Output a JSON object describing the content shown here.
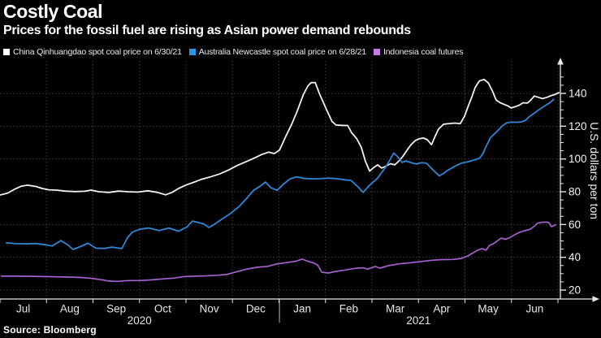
{
  "header": {
    "title": "Costly Coal",
    "subtitle": "Prices for the fossil fuel are rising as Asian power demand rebounds"
  },
  "legend": {
    "items": [
      {
        "label": "China Qinhuangdao spot coal price on 6/30/21",
        "swatch": "#ffffff"
      },
      {
        "label": "Australia Newcastle spot coal price on 6/28/21",
        "swatch": "#2496e8"
      },
      {
        "label": "Indonesia coal futures",
        "swatch": "#c678e8"
      }
    ]
  },
  "source": {
    "text": "Source: Bloomberg"
  },
  "chart_data": {
    "type": "line",
    "title": "Costly Coal",
    "background": "#000000",
    "grid": "dotted",
    "x": {
      "unit": "months since Jul 2020",
      "start": "Jul 2020",
      "end": "Jun 2021",
      "range": [
        0,
        12
      ],
      "tick_labels": [
        "Jul",
        "Aug",
        "Sep",
        "Oct",
        "Nov",
        "Dec",
        "Jan",
        "Feb",
        "Mar",
        "Apr",
        "May",
        "Jun"
      ],
      "year_labels": [
        {
          "label": "2020",
          "center_month": 3
        },
        {
          "label": "2021",
          "center_month": 9
        }
      ]
    },
    "y": {
      "label": "U.S. dollars per ton",
      "side": "right",
      "ticks": [
        20,
        40,
        60,
        80,
        100,
        120,
        140
      ],
      "minor_tick_step": 5,
      "range": [
        14.6,
        159.8
      ]
    },
    "series": [
      {
        "name": "China Qinhuangdao spot coal price on 6/30/21",
        "color": "#f2f2f2",
        "width": 1.8,
        "points": [
          [
            0,
            78
          ],
          [
            0.17,
            79.2
          ],
          [
            0.31,
            81.5
          ],
          [
            0.45,
            83.3
          ],
          [
            0.59,
            84
          ],
          [
            0.77,
            83.2
          ],
          [
            0.91,
            82
          ],
          [
            1.05,
            81.2
          ],
          [
            1.22,
            81
          ],
          [
            1.4,
            80.4
          ],
          [
            1.61,
            80.1
          ],
          [
            1.82,
            80.3
          ],
          [
            1.96,
            81
          ],
          [
            2.13,
            80
          ],
          [
            2.34,
            79.6
          ],
          [
            2.55,
            80.4
          ],
          [
            2.76,
            80
          ],
          [
            2.97,
            79.8
          ],
          [
            3.18,
            80.6
          ],
          [
            3.39,
            79.6
          ],
          [
            3.56,
            78.1
          ],
          [
            3.7,
            79.6
          ],
          [
            3.84,
            82
          ],
          [
            4,
            84.1
          ],
          [
            4.16,
            85.7
          ],
          [
            4.33,
            87.6
          ],
          [
            4.52,
            89
          ],
          [
            4.72,
            90.8
          ],
          [
            4.91,
            93.2
          ],
          [
            5.1,
            96
          ],
          [
            5.28,
            98.2
          ],
          [
            5.45,
            100.3
          ],
          [
            5.62,
            102.6
          ],
          [
            5.78,
            104.2
          ],
          [
            5.9,
            103.3
          ],
          [
            6.01,
            105.4
          ],
          [
            6.15,
            114
          ],
          [
            6.27,
            121
          ],
          [
            6.39,
            129
          ],
          [
            6.52,
            139
          ],
          [
            6.62,
            144.5
          ],
          [
            6.69,
            146.6
          ],
          [
            6.78,
            146.6
          ],
          [
            6.87,
            139.9
          ],
          [
            6.97,
            133.5
          ],
          [
            7.06,
            127.8
          ],
          [
            7.14,
            122.9
          ],
          [
            7.23,
            120.7
          ],
          [
            7.35,
            120.5
          ],
          [
            7.48,
            120.4
          ],
          [
            7.56,
            116.1
          ],
          [
            7.67,
            112.5
          ],
          [
            7.77,
            107.2
          ],
          [
            7.86,
            98.5
          ],
          [
            7.95,
            92.6
          ],
          [
            8.03,
            94.6
          ],
          [
            8.12,
            96.4
          ],
          [
            8.21,
            94.5
          ],
          [
            8.3,
            95.6
          ],
          [
            8.4,
            97.1
          ],
          [
            8.49,
            96.4
          ],
          [
            8.58,
            98.8
          ],
          [
            8.66,
            101.4
          ],
          [
            8.75,
            105.2
          ],
          [
            8.84,
            108.7
          ],
          [
            8.93,
            111.2
          ],
          [
            9.01,
            112.3
          ],
          [
            9.1,
            112.8
          ],
          [
            9.19,
            111.8
          ],
          [
            9.28,
            108.7
          ],
          [
            9.36,
            114
          ],
          [
            9.43,
            118.2
          ],
          [
            9.54,
            121.2
          ],
          [
            9.66,
            121.6
          ],
          [
            9.78,
            121.9
          ],
          [
            9.9,
            121.6
          ],
          [
            9.99,
            126
          ],
          [
            10.08,
            133
          ],
          [
            10.15,
            138
          ],
          [
            10.22,
            143.7
          ],
          [
            10.31,
            147.6
          ],
          [
            10.41,
            148.6
          ],
          [
            10.5,
            146.5
          ],
          [
            10.59,
            141.5
          ],
          [
            10.67,
            136
          ],
          [
            10.76,
            134.3
          ],
          [
            10.85,
            133.2
          ],
          [
            10.93,
            132.3
          ],
          [
            10.99,
            131.1
          ],
          [
            11.07,
            131.8
          ],
          [
            11.16,
            132.7
          ],
          [
            11.25,
            134.3
          ],
          [
            11.34,
            134.1
          ],
          [
            11.42,
            136.1
          ],
          [
            11.49,
            138.4
          ],
          [
            11.58,
            137.6
          ],
          [
            11.67,
            136.8
          ],
          [
            11.76,
            137.6
          ],
          [
            11.84,
            138.5
          ],
          [
            11.93,
            139.3
          ],
          [
            12.02,
            140.5
          ]
        ]
      },
      {
        "name": "Australia Newcastle spot coal price on 6/28/21",
        "color": "#2e86d6",
        "width": 1.8,
        "points": [
          [
            0.14,
            48.8
          ],
          [
            0.35,
            48.3
          ],
          [
            0.56,
            48.2
          ],
          [
            0.77,
            48.4
          ],
          [
            0.98,
            47.6
          ],
          [
            1.12,
            46.9
          ],
          [
            1.31,
            50.2
          ],
          [
            1.47,
            47.3
          ],
          [
            1.57,
            44.8
          ],
          [
            1.75,
            46.8
          ],
          [
            1.89,
            48.6
          ],
          [
            2.06,
            45.6
          ],
          [
            2.24,
            45.4
          ],
          [
            2.41,
            46.2
          ],
          [
            2.62,
            45.3
          ],
          [
            2.74,
            52
          ],
          [
            2.85,
            55.4
          ],
          [
            3,
            57.1
          ],
          [
            3.2,
            57.9
          ],
          [
            3.42,
            56.3
          ],
          [
            3.63,
            57.9
          ],
          [
            3.84,
            55.9
          ],
          [
            4.02,
            58.5
          ],
          [
            4.14,
            62.1
          ],
          [
            4.26,
            61.2
          ],
          [
            4.38,
            60.4
          ],
          [
            4.49,
            58.2
          ],
          [
            4.61,
            60.1
          ],
          [
            4.77,
            63.3
          ],
          [
            4.96,
            66.8
          ],
          [
            5.14,
            70.9
          ],
          [
            5.31,
            76.1
          ],
          [
            5.45,
            80.8
          ],
          [
            5.57,
            82.9
          ],
          [
            5.71,
            85.9
          ],
          [
            5.83,
            82.4
          ],
          [
            5.96,
            80.9
          ],
          [
            6.1,
            84.7
          ],
          [
            6.24,
            87.9
          ],
          [
            6.38,
            89.1
          ],
          [
            6.55,
            88.1
          ],
          [
            6.73,
            87.9
          ],
          [
            6.9,
            88
          ],
          [
            7.07,
            88.4
          ],
          [
            7.23,
            88
          ],
          [
            7.41,
            87.3
          ],
          [
            7.55,
            86.9
          ],
          [
            7.69,
            83.2
          ],
          [
            7.81,
            79.6
          ],
          [
            7.95,
            84
          ],
          [
            8.12,
            88.3
          ],
          [
            8.3,
            95.3
          ],
          [
            8.47,
            103.6
          ],
          [
            8.56,
            101.1
          ],
          [
            8.65,
            97.9
          ],
          [
            8.73,
            98.8
          ],
          [
            8.86,
            97.6
          ],
          [
            8.96,
            96.9
          ],
          [
            9.07,
            97.8
          ],
          [
            9.17,
            97.4
          ],
          [
            9.28,
            94.3
          ],
          [
            9.38,
            91.5
          ],
          [
            9.45,
            89.7
          ],
          [
            9.54,
            91.2
          ],
          [
            9.64,
            93.3
          ],
          [
            9.78,
            95.5
          ],
          [
            9.92,
            97.4
          ],
          [
            10.06,
            98.3
          ],
          [
            10.2,
            99.4
          ],
          [
            10.31,
            100.4
          ],
          [
            10.38,
            103
          ],
          [
            10.46,
            108
          ],
          [
            10.55,
            113
          ],
          [
            10.64,
            115.5
          ],
          [
            10.73,
            118
          ],
          [
            10.81,
            120.4
          ],
          [
            10.9,
            122
          ],
          [
            10.99,
            122.5
          ],
          [
            11.11,
            122.4
          ],
          [
            11.21,
            122.6
          ],
          [
            11.3,
            123.6
          ],
          [
            11.39,
            126
          ],
          [
            11.48,
            127.7
          ],
          [
            11.56,
            129.4
          ],
          [
            11.65,
            131.1
          ],
          [
            11.74,
            132.8
          ],
          [
            11.83,
            134.4
          ],
          [
            11.91,
            136.4
          ]
        ]
      },
      {
        "name": "Indonesia coal futures",
        "color": "#a660cf",
        "width": 1.7,
        "points": [
          [
            0.03,
            28.5
          ],
          [
            0.35,
            28.5
          ],
          [
            0.7,
            28.4
          ],
          [
            1.05,
            28.2
          ],
          [
            1.4,
            28
          ],
          [
            1.75,
            27.7
          ],
          [
            1.99,
            27.1
          ],
          [
            2.2,
            26.2
          ],
          [
            2.34,
            25.5
          ],
          [
            2.52,
            25.3
          ],
          [
            2.76,
            25.8
          ],
          [
            3,
            25.8
          ],
          [
            3.25,
            26.2
          ],
          [
            3.49,
            26.8
          ],
          [
            3.74,
            27.3
          ],
          [
            3.95,
            28.2
          ],
          [
            4.19,
            28.5
          ],
          [
            4.44,
            28.7
          ],
          [
            4.68,
            29
          ],
          [
            4.89,
            29.6
          ],
          [
            5.07,
            31
          ],
          [
            5.28,
            32.6
          ],
          [
            5.52,
            33.9
          ],
          [
            5.76,
            34.5
          ],
          [
            5.94,
            35.9
          ],
          [
            6.15,
            36.7
          ],
          [
            6.36,
            37.6
          ],
          [
            6.5,
            38.9
          ],
          [
            6.62,
            37.6
          ],
          [
            6.74,
            36.6
          ],
          [
            6.83,
            35.3
          ],
          [
            6.92,
            30.9
          ],
          [
            7.06,
            30.4
          ],
          [
            7.23,
            31.4
          ],
          [
            7.44,
            32.3
          ],
          [
            7.65,
            33.3
          ],
          [
            7.81,
            33.6
          ],
          [
            7.91,
            32.8
          ],
          [
            8.07,
            34.4
          ],
          [
            8.17,
            33.4
          ],
          [
            8.35,
            34.9
          ],
          [
            8.59,
            36
          ],
          [
            8.84,
            36.7
          ],
          [
            9.08,
            37.5
          ],
          [
            9.29,
            38.2
          ],
          [
            9.5,
            38.6
          ],
          [
            9.75,
            38.7
          ],
          [
            9.92,
            39.3
          ],
          [
            10.06,
            40.8
          ],
          [
            10.18,
            42.8
          ],
          [
            10.29,
            44.6
          ],
          [
            10.38,
            45.3
          ],
          [
            10.45,
            44.3
          ],
          [
            10.53,
            47.3
          ],
          [
            10.62,
            48.4
          ],
          [
            10.71,
            50.3
          ],
          [
            10.78,
            51.7
          ],
          [
            10.87,
            51
          ],
          [
            10.97,
            52.1
          ],
          [
            11.07,
            53.8
          ],
          [
            11.18,
            55.3
          ],
          [
            11.28,
            56.2
          ],
          [
            11.39,
            57
          ],
          [
            11.48,
            58.6
          ],
          [
            11.56,
            60.8
          ],
          [
            11.67,
            61.4
          ],
          [
            11.76,
            61.5
          ],
          [
            11.81,
            61
          ],
          [
            11.86,
            58.7
          ],
          [
            11.95,
            59.8
          ]
        ]
      }
    ]
  }
}
